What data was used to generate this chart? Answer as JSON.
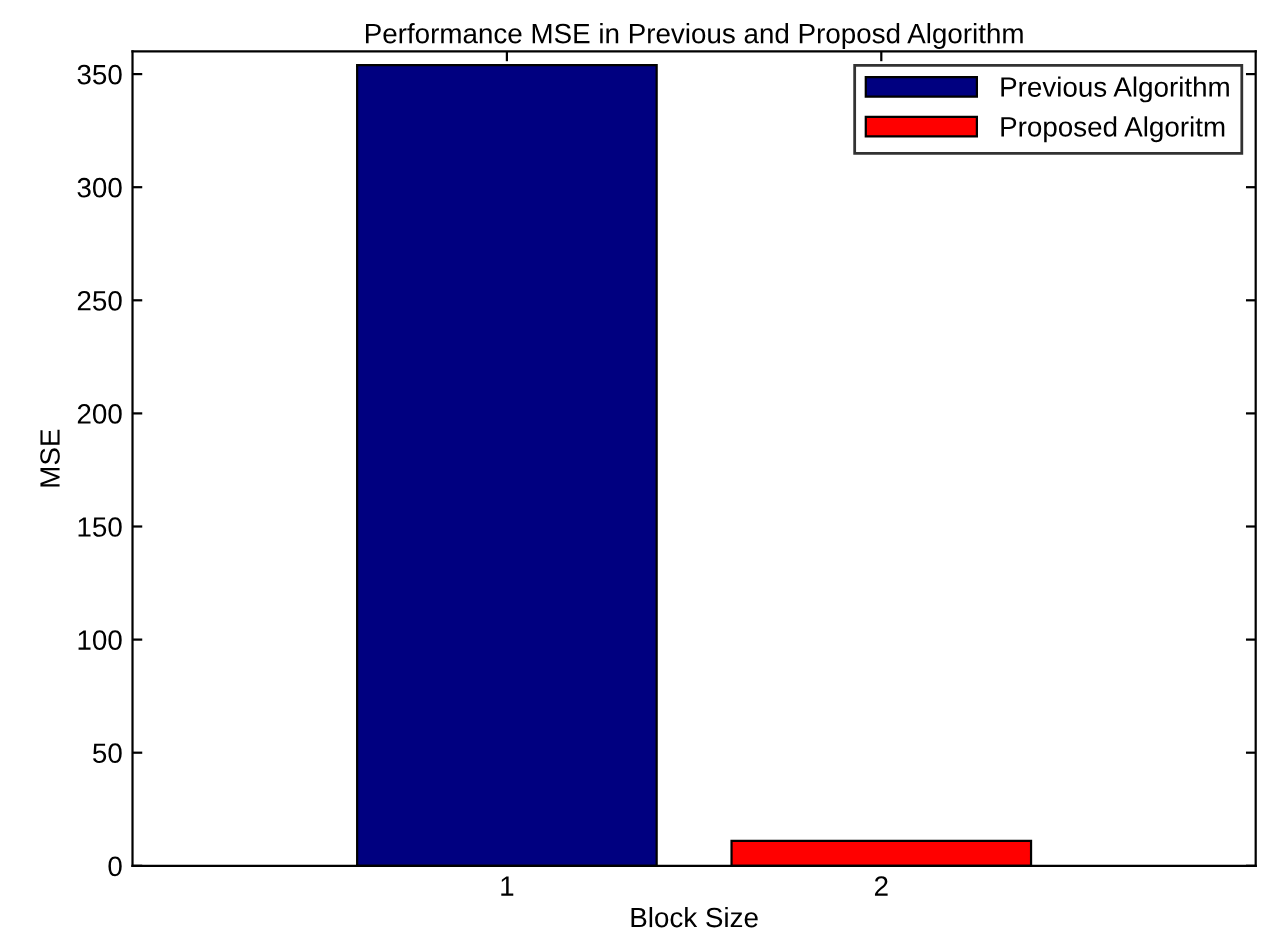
{
  "chart_data": {
    "type": "bar",
    "title": "Performance MSE in Previous and Proposd Algorithm",
    "xlabel": "Block Size",
    "ylabel": "MSE",
    "series": [
      {
        "name": "Previous Algorithm",
        "color": "#000080",
        "x": [
          1
        ],
        "values": [
          354
        ]
      },
      {
        "name": "Proposed Algoritm",
        "color": "#ff0000",
        "x": [
          2
        ],
        "values": [
          11
        ]
      }
    ],
    "xlim": [
      0,
      3
    ],
    "xticks": [
      1,
      2
    ],
    "ylim": [
      0,
      360
    ],
    "yticks": [
      0,
      50,
      100,
      150,
      200,
      250,
      300,
      350
    ],
    "grid": false,
    "legend": "top right"
  }
}
